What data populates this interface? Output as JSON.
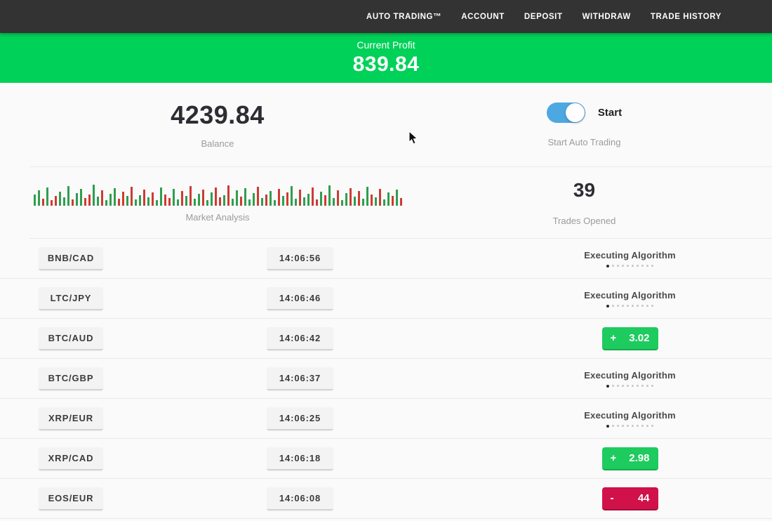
{
  "nav": {
    "items": [
      "AUTO TRADING™",
      "ACCOUNT",
      "DEPOSIT",
      "WITHDRAW",
      "TRADE HISTORY"
    ]
  },
  "profit_banner": {
    "label": "Current Profit",
    "value": "839.84"
  },
  "stats": {
    "balance": {
      "value": "4239.84",
      "label": "Balance"
    },
    "auto_trading": {
      "toggle_label": "Start",
      "label": "Start Auto Trading",
      "state": "on"
    },
    "market_analysis": {
      "label": "Market Analysis"
    },
    "trades_opened": {
      "value": "39",
      "label": "Trades Opened"
    }
  },
  "chart_data": {
    "type": "bar",
    "title": "Market Analysis",
    "description": "Decorative market-tick bar strip; green = up tick, red = down tick; heights in px (6-30), no axes shown",
    "heights": "16,22,10,26,8,14,20,12,28,9,18,24,11,16,30,13,22,8,17,25,10,20,14,27,9,15,23,12,19,8,26,16,11,24,9,21,14,28,10,17,23,8,19,26,12,15,29,10,22,13,25,9,18,27,11,16,21,8,24,14,19,28,10,23,12,17,26,9,20,15,29,11,22,8,18,25,13,21,10,27,16,12,24,9,19,14,23,11",
    "colors": "ggrgrrgggrggrrggrgggrrgrggrgrggrrggrgrggrggrrgrggrgggrgrggrgrggrggrrgrggrggrgrggrgrggrgr",
    "legend_position": "none",
    "grid": false
  },
  "trades": [
    {
      "pair": "BNB/CAD",
      "time": "14:06:56",
      "status": "executing",
      "status_label": "Executing Algorithm"
    },
    {
      "pair": "LTC/JPY",
      "time": "14:06:46",
      "status": "executing",
      "status_label": "Executing Algorithm"
    },
    {
      "pair": "BTC/AUD",
      "time": "14:06:42",
      "status": "profit",
      "sign": "+",
      "amount": "3.02"
    },
    {
      "pair": "BTC/GBP",
      "time": "14:06:37",
      "status": "executing",
      "status_label": "Executing Algorithm"
    },
    {
      "pair": "XRP/EUR",
      "time": "14:06:25",
      "status": "executing",
      "status_label": "Executing Algorithm"
    },
    {
      "pair": "XRP/CAD",
      "time": "14:06:18",
      "status": "profit",
      "sign": "+",
      "amount": "2.98"
    },
    {
      "pair": "EOS/EUR",
      "time": "14:06:08",
      "status": "loss",
      "sign": "-",
      "amount": "44"
    }
  ],
  "colors": {
    "nav_bg": "#333333",
    "banner_green": "#00d158",
    "profit_badge_green": "#1ecb5e",
    "loss_badge_red": "#d0114a",
    "toggle_blue": "#4da8e2",
    "chart_up_green": "#2f9e4f",
    "chart_down_red": "#cc3b33"
  }
}
